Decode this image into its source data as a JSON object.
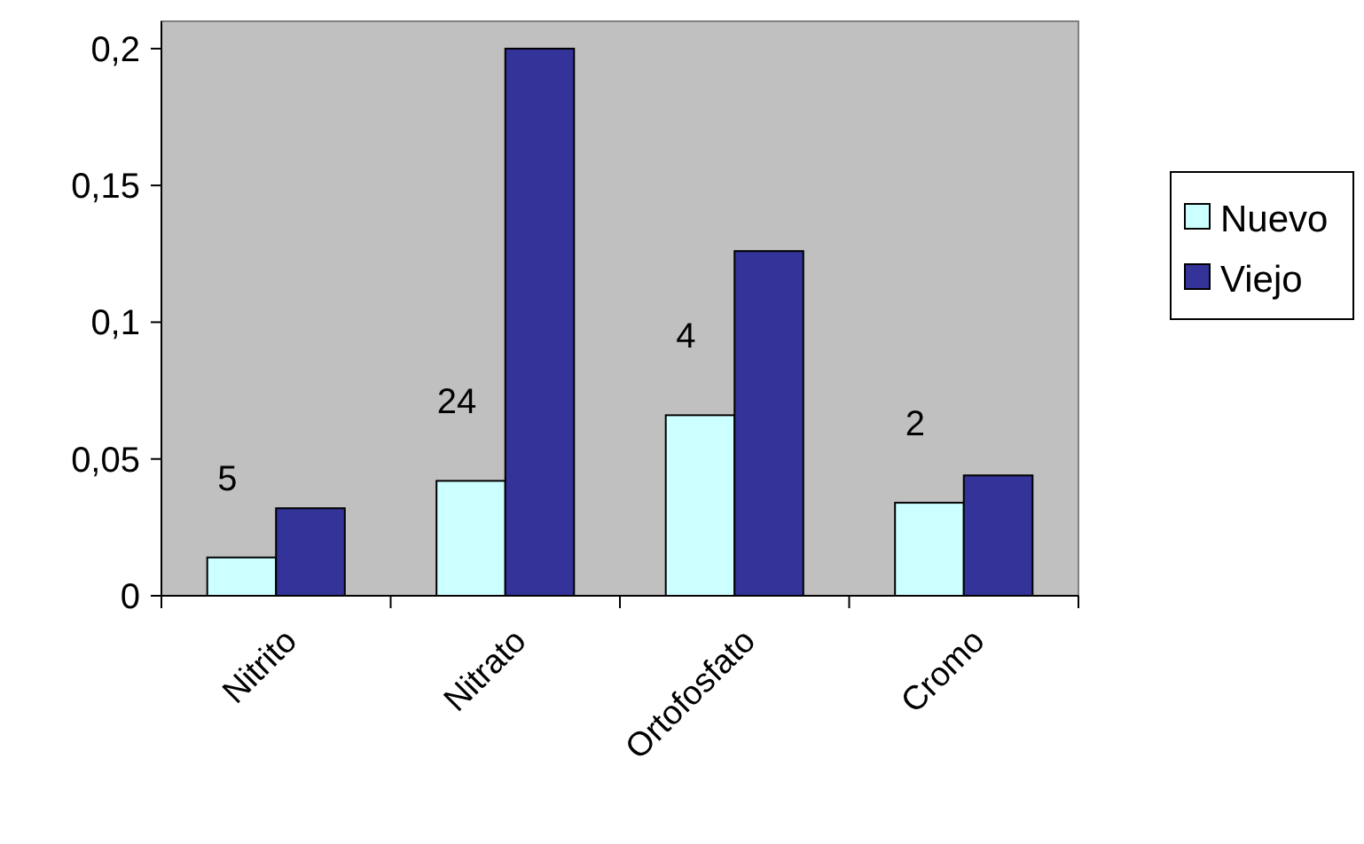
{
  "chart_data": {
    "type": "bar",
    "categories": [
      "Nitrito",
      "Nitrato",
      "Ortofosfato",
      "Cromo"
    ],
    "series": [
      {
        "name": "Nuevo",
        "color": "#ccffff",
        "values": [
          0.014,
          0.042,
          0.066,
          0.034
        ]
      },
      {
        "name": "Viejo",
        "color": "#333399",
        "values": [
          0.032,
          0.2,
          0.126,
          0.044
        ]
      }
    ],
    "ylim": [
      0,
      0.21
    ],
    "yticks": [
      0,
      {
        "value": 0.05,
        "label": "0,05"
      },
      {
        "value": 0.1,
        "label": "0,1"
      },
      {
        "value": 0.15,
        "label": "0,15"
      },
      {
        "value": 0.2,
        "label": "0,2"
      }
    ],
    "annotations": [
      "5",
      "24",
      "4",
      "2"
    ],
    "grid": false,
    "legend": "right"
  }
}
